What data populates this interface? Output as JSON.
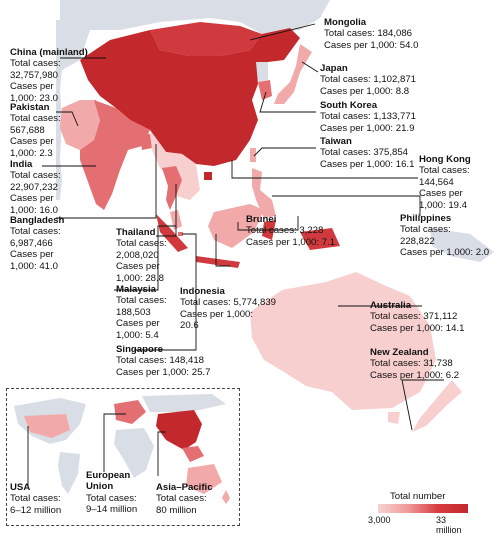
{
  "labels": {
    "mongolia": {
      "name": "Mongolia",
      "lines": [
        "Total cases: 184,086",
        "Cases per 1,000: 54.0"
      ]
    },
    "china": {
      "name": "China (mainland)",
      "lines": [
        "Total cases:",
        "32,757,980",
        "Cases per",
        "1,000: 23.0"
      ]
    },
    "japan": {
      "name": "Japan",
      "lines": [
        "Total cases: 1,102,871",
        "Cases per 1,000: 8.8"
      ]
    },
    "south_korea": {
      "name": "South Korea",
      "lines": [
        "Total cases: 1,133,771",
        "Cases per 1,000: 21.9"
      ]
    },
    "pakistan": {
      "name": "Pakistan",
      "lines": [
        "Total cases:",
        "567,688",
        "Cases per",
        "1,000: 2.3"
      ]
    },
    "taiwan": {
      "name": "Taiwan",
      "lines": [
        "Total cases: 375,854",
        "Cases per 1,000: 16.1"
      ]
    },
    "india": {
      "name": "India",
      "lines": [
        "Total cases:",
        "22,907,232",
        "Cases per",
        "1,000: 16.0"
      ]
    },
    "hong_kong": {
      "name": "Hong Kong",
      "lines": [
        "Total cases:",
        "144,564",
        "Cases per",
        "1,000: 19.4"
      ]
    },
    "bangladesh": {
      "name": "Bangladesh",
      "lines": [
        "Total cases:",
        "6,987,466",
        "Cases per",
        "1,000: 41.0"
      ]
    },
    "thailand": {
      "name": "Thailand",
      "lines": [
        "Total cases:",
        "2,008,020",
        "Cases per",
        "1,000: 28.8"
      ]
    },
    "brunei": {
      "name": "Brunei",
      "lines": [
        "Total cases: 3,228",
        "Cases per 1,000: 7.1"
      ]
    },
    "philippines": {
      "name": "Philippines",
      "lines": [
        "Total cases:",
        "228,822",
        "Cases per 1,000: 2.0"
      ]
    },
    "malaysia": {
      "name": "Malaysia",
      "lines": [
        "Total cases:",
        "188,503",
        "Cases per",
        "1,000: 5.4"
      ]
    },
    "indonesia": {
      "name": "Indonesia",
      "lines": [
        "Total cases: 5,774,839",
        "Cases per 1,000:",
        "20.6"
      ]
    },
    "australia": {
      "name": "Australia",
      "lines": [
        "Total cases: 371,112",
        "Cases per 1,000: 14.1"
      ]
    },
    "singapore": {
      "name": "Singapore",
      "lines": [
        "Total cases: 148,418",
        "Cases per 1,000: 25.7"
      ]
    },
    "new_zealand": {
      "name": "New Zealand",
      "lines": [
        "Total cases: 31,738",
        "Cases per 1,000: 6.2"
      ]
    },
    "usa": {
      "name": "USA",
      "lines": [
        "Total cases:",
        "6–12 million"
      ]
    },
    "eu": {
      "name": "European",
      "name2": "Union",
      "lines": [
        "Total cases:",
        "9–14 million"
      ]
    },
    "apac": {
      "name": "Asia–Pacific",
      "lines": [
        "Total cases:",
        "80 million"
      ]
    }
  },
  "legend": {
    "title": "Total number",
    "min": "3,000",
    "max": "33 million"
  },
  "colors": {
    "land_other": "#d9dde5",
    "china": "#c3282d",
    "dark": "#d03a3e",
    "mid": "#e46f72",
    "light": "#f1a9aa",
    "pale": "#f8cfcf",
    "line": "#111111",
    "sea": "#ffffff"
  }
}
